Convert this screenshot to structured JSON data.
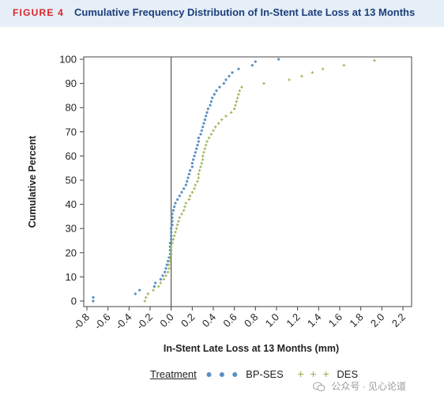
{
  "figure": {
    "label": "FIGURE 4",
    "title": "Cumulative Frequency Distribution of In-Stent Late Loss at 13 Months"
  },
  "legend": {
    "title": "Treatment",
    "items": [
      {
        "marker": "● ● ●",
        "label": "BP-SES",
        "color": "#5b8fc4"
      },
      {
        "marker": "+ + +",
        "label": "DES",
        "color": "#93ad45"
      }
    ]
  },
  "watermark": {
    "text": "公众号 · 见心论道",
    "icon": "wechat-icon"
  },
  "chart_data": {
    "type": "scatter",
    "title": "",
    "xlabel": "In-Stent Late Loss at 13 Months (mm)",
    "ylabel": "Cumulative Percent",
    "xlim": [
      -0.8,
      2.2
    ],
    "ylim": [
      0,
      100
    ],
    "xticks": [
      "-0.8",
      "-0.6",
      "-0.4",
      "-0.2",
      "0.0",
      "0.2",
      "0.4",
      "0.6",
      "0.8",
      "1.0",
      "1.2",
      "1.4",
      "1.6",
      "1.8",
      "2.0",
      "2.2"
    ],
    "yticks": [
      "0",
      "10",
      "20",
      "30",
      "40",
      "50",
      "60",
      "70",
      "80",
      "90",
      "100"
    ],
    "reference_line_x": 0.0,
    "grid": false,
    "legend_position": "bottom",
    "series": [
      {
        "name": "BP-SES",
        "color": "#5b8fc4",
        "marker": "dot",
        "points": [
          [
            -0.74,
            0
          ],
          [
            -0.74,
            1.5
          ],
          [
            -0.34,
            3
          ],
          [
            -0.3,
            4.5
          ],
          [
            -0.16,
            6
          ],
          [
            -0.15,
            7.5
          ],
          [
            -0.1,
            9
          ],
          [
            -0.08,
            10.5
          ],
          [
            -0.06,
            12
          ],
          [
            -0.05,
            13.5
          ],
          [
            -0.04,
            15
          ],
          [
            -0.03,
            16.5
          ],
          [
            -0.02,
            18
          ],
          [
            -0.01,
            19.5
          ],
          [
            -0.01,
            21
          ],
          [
            -0.01,
            22.5
          ],
          [
            -0.01,
            24
          ],
          [
            0.0,
            25.5
          ],
          [
            0.0,
            27
          ],
          [
            0.0,
            28.5
          ],
          [
            0.0,
            30
          ],
          [
            0.01,
            31.5
          ],
          [
            0.01,
            33
          ],
          [
            0.01,
            34.5
          ],
          [
            0.01,
            36
          ],
          [
            0.02,
            37.5
          ],
          [
            0.03,
            39
          ],
          [
            0.04,
            40.5
          ],
          [
            0.06,
            42
          ],
          [
            0.08,
            43.5
          ],
          [
            0.1,
            45
          ],
          [
            0.12,
            46.5
          ],
          [
            0.14,
            48
          ],
          [
            0.15,
            49.5
          ],
          [
            0.16,
            51
          ],
          [
            0.17,
            52.5
          ],
          [
            0.18,
            54
          ],
          [
            0.2,
            55.5
          ],
          [
            0.2,
            57
          ],
          [
            0.21,
            58.5
          ],
          [
            0.22,
            60
          ],
          [
            0.23,
            61.5
          ],
          [
            0.24,
            63
          ],
          [
            0.25,
            64.5
          ],
          [
            0.26,
            66
          ],
          [
            0.26,
            67.5
          ],
          [
            0.28,
            69
          ],
          [
            0.29,
            70.5
          ],
          [
            0.3,
            72
          ],
          [
            0.31,
            73.5
          ],
          [
            0.32,
            75
          ],
          [
            0.33,
            76.5
          ],
          [
            0.34,
            78
          ],
          [
            0.35,
            79.5
          ],
          [
            0.37,
            81
          ],
          [
            0.38,
            82.5
          ],
          [
            0.39,
            84
          ],
          [
            0.41,
            85.5
          ],
          [
            0.43,
            87
          ],
          [
            0.46,
            88.5
          ],
          [
            0.5,
            90
          ],
          [
            0.52,
            91.5
          ],
          [
            0.55,
            93
          ],
          [
            0.58,
            94.5
          ],
          [
            0.64,
            96
          ],
          [
            0.77,
            97.5
          ],
          [
            0.8,
            99
          ],
          [
            1.02,
            100
          ]
        ]
      },
      {
        "name": "DES",
        "color": "#93ad45",
        "marker": "plus",
        "points": [
          [
            -0.25,
            0
          ],
          [
            -0.24,
            1.5
          ],
          [
            -0.22,
            3
          ],
          [
            -0.17,
            4.5
          ],
          [
            -0.12,
            6
          ],
          [
            -0.1,
            7.5
          ],
          [
            -0.07,
            9
          ],
          [
            -0.05,
            10.5
          ],
          [
            -0.03,
            12
          ],
          [
            -0.02,
            13.5
          ],
          [
            -0.02,
            15
          ],
          [
            -0.01,
            16.5
          ],
          [
            -0.01,
            18
          ],
          [
            0.0,
            19.5
          ],
          [
            0.0,
            21
          ],
          [
            0.0,
            22.5
          ],
          [
            0.01,
            24
          ],
          [
            0.02,
            25.5
          ],
          [
            0.03,
            27
          ],
          [
            0.04,
            28.5
          ],
          [
            0.05,
            30
          ],
          [
            0.06,
            31.5
          ],
          [
            0.07,
            33
          ],
          [
            0.08,
            34.5
          ],
          [
            0.1,
            36
          ],
          [
            0.12,
            37.5
          ],
          [
            0.13,
            39
          ],
          [
            0.14,
            40.5
          ],
          [
            0.17,
            42
          ],
          [
            0.18,
            43.5
          ],
          [
            0.2,
            45
          ],
          [
            0.22,
            46.5
          ],
          [
            0.23,
            48
          ],
          [
            0.25,
            49.5
          ],
          [
            0.26,
            51
          ],
          [
            0.26,
            52.5
          ],
          [
            0.27,
            54
          ],
          [
            0.28,
            55.5
          ],
          [
            0.29,
            57
          ],
          [
            0.3,
            58.5
          ],
          [
            0.3,
            60
          ],
          [
            0.31,
            61.5
          ],
          [
            0.32,
            63
          ],
          [
            0.33,
            64.5
          ],
          [
            0.34,
            66
          ],
          [
            0.36,
            67.5
          ],
          [
            0.38,
            69
          ],
          [
            0.4,
            70.5
          ],
          [
            0.42,
            72
          ],
          [
            0.45,
            73.5
          ],
          [
            0.48,
            75
          ],
          [
            0.52,
            76.5
          ],
          [
            0.57,
            78
          ],
          [
            0.6,
            79.5
          ],
          [
            0.61,
            81
          ],
          [
            0.62,
            82.5
          ],
          [
            0.63,
            84
          ],
          [
            0.64,
            85.5
          ],
          [
            0.65,
            87
          ],
          [
            0.67,
            88.5
          ],
          [
            0.88,
            90
          ],
          [
            1.12,
            91.5
          ],
          [
            1.24,
            93
          ],
          [
            1.34,
            94.5
          ],
          [
            1.44,
            96
          ],
          [
            1.64,
            97.5
          ],
          [
            1.93,
            99.5
          ]
        ]
      }
    ]
  }
}
